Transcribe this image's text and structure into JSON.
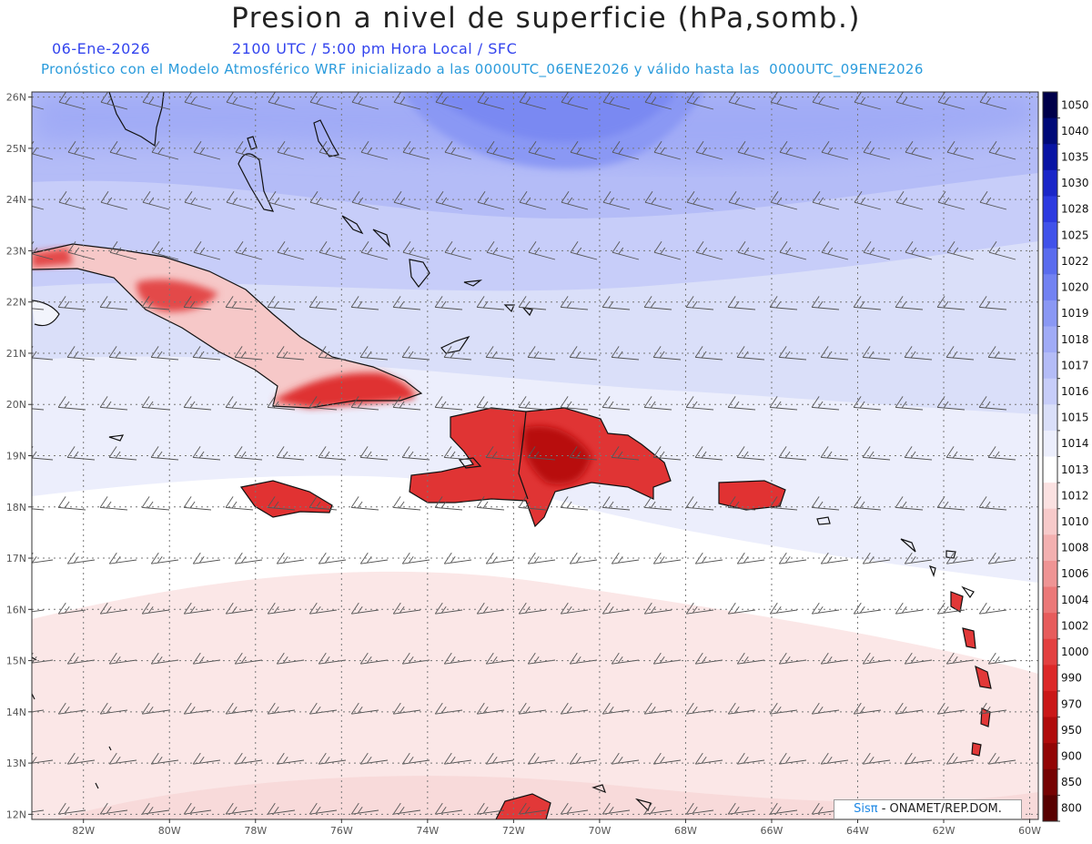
{
  "title": "Presion a nivel de superficie (hPa,somb.)",
  "subtitle": {
    "date": "06-Ene-2026",
    "time": "2100 UTC / 5:00 pm Hora Local / SFC"
  },
  "model_line": "Pronóstico con el Modelo Atmosférico WRF inicializado a las 0000UTC_06ENE2026 y válido hasta las  0000UTC_09ENE2026",
  "map": {
    "variable": "sea-level pressure (hPa), shaded",
    "lon_range": [
      -83.2,
      -59.8
    ],
    "lat_range": [
      11.9,
      26.1
    ],
    "lat_labels": [
      "26N",
      "25N",
      "24N",
      "23N",
      "22N",
      "21N",
      "20N",
      "19N",
      "18N",
      "17N",
      "16N",
      "15N",
      "14N",
      "13N",
      "12N"
    ],
    "lon_labels": [
      "82W",
      "80W",
      "78W",
      "76W",
      "74W",
      "72W",
      "70W",
      "68W",
      "66W",
      "64W",
      "62W",
      "60W"
    ],
    "grid": "dotted",
    "wind_barbs": true
  },
  "colorbar": {
    "levels": [
      "1050",
      "1040",
      "1035",
      "1030",
      "1028",
      "1025",
      "1022",
      "1020",
      "1019",
      "1018",
      "1017",
      "1016",
      "1015",
      "1014",
      "1013",
      "1012",
      "1010",
      "1008",
      "1006",
      "1004",
      "1002",
      "1000",
      "990",
      "970",
      "950",
      "900",
      "850",
      "800"
    ],
    "colors": [
      "#00004a",
      "#000a78",
      "#0814a4",
      "#1a26c8",
      "#2c3ae0",
      "#4052ea",
      "#5a6cee",
      "#7282f2",
      "#8a98f4",
      "#a0abf6",
      "#b4bcf7",
      "#c7cdf9",
      "#dadff9",
      "#eceefc",
      "#ffffff",
      "#fbe1e1",
      "#f7caca",
      "#f3b0b0",
      "#ef9494",
      "#eb7878",
      "#e75c5c",
      "#e34040",
      "#dc2828",
      "#ca1818",
      "#b00c0c",
      "#920606",
      "#760303",
      "#580101"
    ]
  },
  "credit": {
    "logo": "Sisπ",
    "text": " - ONAMET/REP.DOM."
  }
}
